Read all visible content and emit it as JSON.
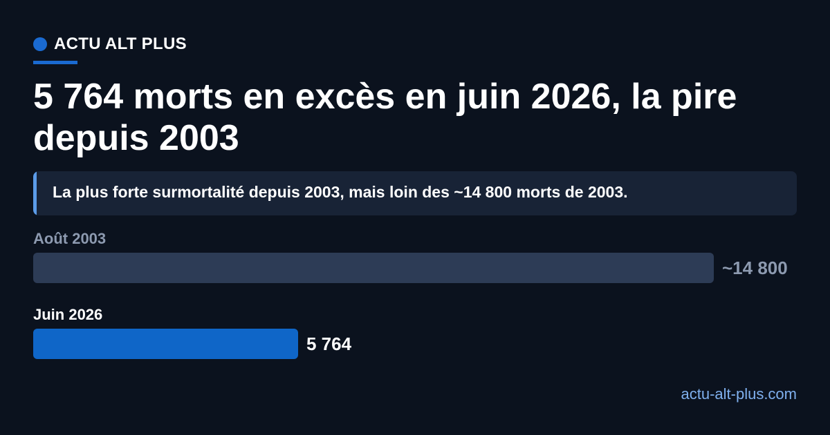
{
  "brand": {
    "name": "ACTU ALT PLUS",
    "accent": "#1a6ad1"
  },
  "headline": "5 764 morts en excès en juin 2026, la pire depuis 2003",
  "callout": "La plus forte surmortalité depuis 2003, mais loin des ~14 800 morts de 2003.",
  "chart_data": {
    "type": "bar",
    "orientation": "horizontal",
    "categories": [
      "Août 2003",
      "Juin 2026"
    ],
    "values": [
      14800,
      5764
    ],
    "value_labels": [
      "~14 800",
      "5 764"
    ],
    "xlim": [
      0,
      14800
    ],
    "colors": [
      "#2d3c56",
      "#0f66c8"
    ],
    "label_colors": [
      "#8d9ab0",
      "#ffffff"
    ]
  },
  "footer": {
    "site": "actu-alt-plus.com"
  }
}
